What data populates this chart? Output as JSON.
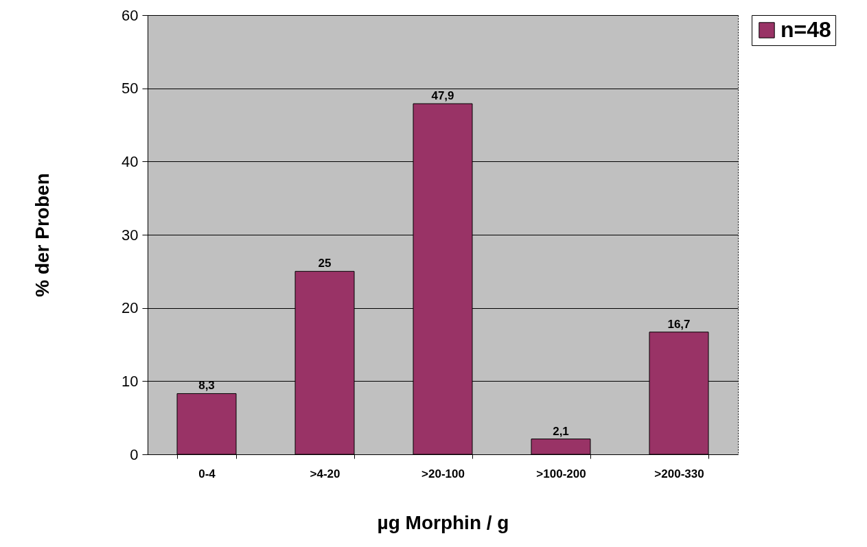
{
  "chart_data": {
    "type": "bar",
    "xlabel": "µg Morphin / g",
    "ylabel": "%  der Proben",
    "categories": [
      "0-4",
      ">4-20",
      ">20-100",
      ">100-200",
      ">200-330"
    ],
    "series": [
      {
        "name": "n=48",
        "color": "#993366",
        "values": [
          8.3,
          25,
          47.9,
          2.1,
          16.7
        ],
        "value_labels": [
          "8,3",
          "25",
          "47,9",
          "2,1",
          "16,7"
        ]
      }
    ],
    "ylim": [
      0,
      60
    ],
    "yticks": [
      0,
      10,
      20,
      30,
      40,
      50,
      60
    ],
    "grid": "y",
    "legend": "top right"
  }
}
